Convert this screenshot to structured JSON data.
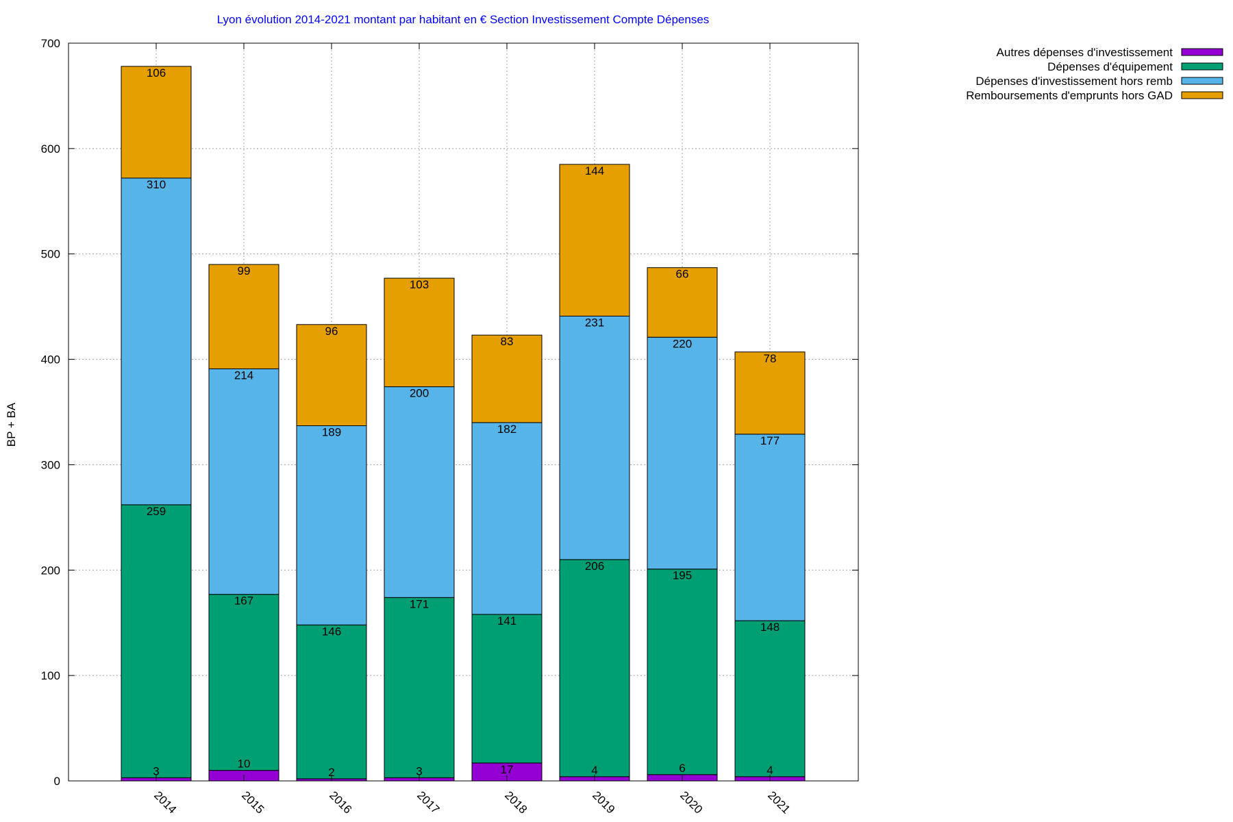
{
  "chart_data": {
    "type": "bar",
    "stacked": true,
    "title": "Lyon évolution 2014-2021 montant par habitant en € Section Investissement Compte Dépenses",
    "xlabel": "",
    "ylabel": "BP + BA",
    "ylim": [
      0,
      700
    ],
    "yticks": [
      0,
      100,
      200,
      300,
      400,
      500,
      600,
      700
    ],
    "grid": true,
    "legend_position": "top-right-outside",
    "categories": [
      "2014",
      "2015",
      "2016",
      "2017",
      "2018",
      "2019",
      "2020",
      "2021"
    ],
    "series": [
      {
        "name": "Autres dépenses d'investissement",
        "color": "#9400d3",
        "values": [
          3,
          10,
          2,
          3,
          17,
          4,
          6,
          4
        ]
      },
      {
        "name": "Dépenses d'équipement",
        "color": "#009e73",
        "values": [
          259,
          167,
          146,
          171,
          141,
          206,
          195,
          148
        ]
      },
      {
        "name": "Dépenses d'investissement hors remb",
        "color": "#56b4e9",
        "values": [
          310,
          214,
          189,
          200,
          182,
          231,
          220,
          177
        ]
      },
      {
        "name": "Remboursements d'emprunts hors GAD",
        "color": "#e69f00",
        "values": [
          106,
          99,
          96,
          103,
          83,
          144,
          66,
          78
        ]
      }
    ]
  },
  "colors": {
    "title": "#0000ff",
    "grid": "#a0a0a0"
  }
}
